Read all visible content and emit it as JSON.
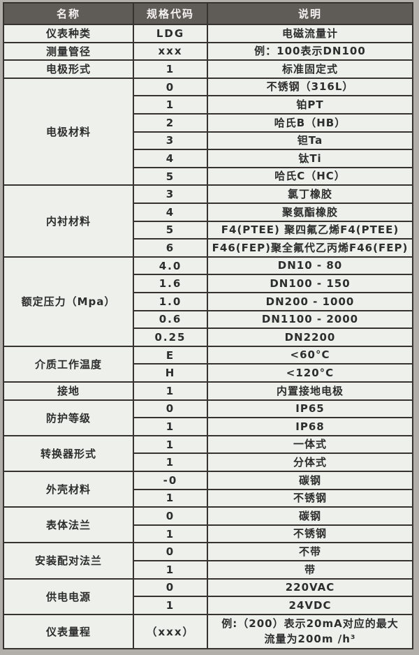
{
  "theme": {
    "page_bg": "#b2afab",
    "border": "#35322f",
    "body_bg": "#edf0eb",
    "header_bg": "#5f5b57",
    "header_text": "#f4f3f1",
    "text": "#2d2d2d"
  },
  "table": {
    "headers": [
      "名称",
      "规格代码",
      "说明"
    ],
    "groups": [
      {
        "name": "仪表种类",
        "rows": [
          {
            "code": "LDG",
            "desc": "电磁流量计"
          }
        ]
      },
      {
        "name": "测量管径",
        "rows": [
          {
            "code": "xxx",
            "desc": "例：100表示DN100"
          }
        ]
      },
      {
        "name": "电极形式",
        "rows": [
          {
            "code": "1",
            "desc": "标准固定式"
          }
        ]
      },
      {
        "name": "电极材料",
        "rows": [
          {
            "code": "0",
            "desc": "不锈钢（316L）"
          },
          {
            "code": "1",
            "desc": "铂PT"
          },
          {
            "code": "2",
            "desc": "哈氏B（HB）"
          },
          {
            "code": "3",
            "desc": "钽Ta"
          },
          {
            "code": "4",
            "desc": "钛Ti"
          },
          {
            "code": "5",
            "desc": "哈氏C（HC）"
          }
        ]
      },
      {
        "name": "内衬材料",
        "rows": [
          {
            "code": "3",
            "desc": "氯丁橡胶"
          },
          {
            "code": "4",
            "desc": "聚氨酯橡胶"
          },
          {
            "code": "5",
            "desc": "F4(PTEE) 聚四氟乙烯F4(PTEE)"
          },
          {
            "code": "6",
            "desc": "F46(FEP)聚全氟代乙丙烯F46(FEP)"
          }
        ]
      },
      {
        "name": "额定压力（Mpa）",
        "rows": [
          {
            "code": "4.0",
            "desc": "DN10 - 80"
          },
          {
            "code": "1.6",
            "desc": "DN100 - 150"
          },
          {
            "code": "1.0",
            "desc": "DN200 - 1000"
          },
          {
            "code": "0.6",
            "desc": "DN1100 - 2000"
          },
          {
            "code": "0.25",
            "desc": "DN2200"
          }
        ]
      },
      {
        "name": "介质工作温度",
        "rows": [
          {
            "code": "E",
            "desc": "<60°C"
          },
          {
            "code": "H",
            "desc": "<120°C"
          }
        ]
      },
      {
        "name": "接地",
        "rows": [
          {
            "code": "1",
            "desc": "内置接地电极"
          }
        ]
      },
      {
        "name": "防护等级",
        "rows": [
          {
            "code": "0",
            "desc": "IP65"
          },
          {
            "code": "1",
            "desc": "IP68"
          }
        ]
      },
      {
        "name": "转换器形式",
        "rows": [
          {
            "code": "1",
            "desc": "一体式"
          },
          {
            "code": "1",
            "desc": "分体式"
          }
        ]
      },
      {
        "name": "外壳材料",
        "rows": [
          {
            "code": "-0",
            "desc": "碳钢"
          },
          {
            "code": "1",
            "desc": "不锈钢"
          }
        ]
      },
      {
        "name": "表体法兰",
        "rows": [
          {
            "code": "0",
            "desc": "碳钢"
          },
          {
            "code": "1",
            "desc": "不锈钢"
          }
        ]
      },
      {
        "name": "安装配对法兰",
        "rows": [
          {
            "code": "0",
            "desc": "不带"
          },
          {
            "code": "1",
            "desc": "带"
          }
        ]
      },
      {
        "name": "供电电源",
        "rows": [
          {
            "code": "0",
            "desc": "220VAC"
          },
          {
            "code": "1",
            "desc": "24VDC"
          }
        ]
      },
      {
        "name": "仪表量程",
        "rows": [
          {
            "code": "（xxx）",
            "desc": "例:（200）表示20mA对应的最大",
            "desc2": "流量为200m /h³",
            "tall": true
          }
        ]
      }
    ]
  }
}
